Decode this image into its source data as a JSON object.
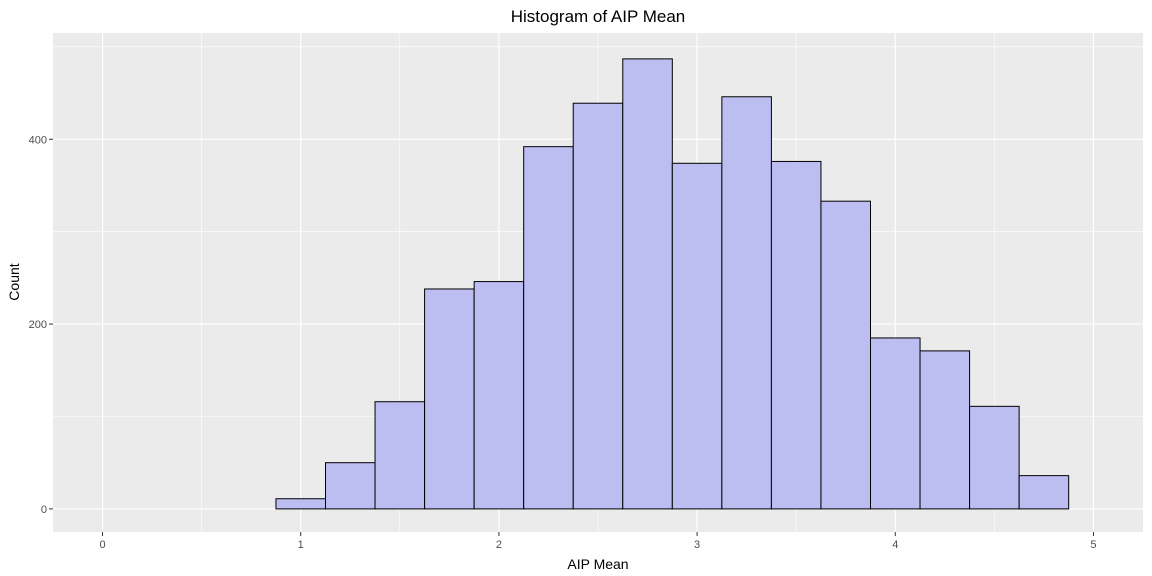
{
  "chart_data": {
    "type": "bar",
    "subtype": "histogram",
    "title": "Histogram of AIP Mean",
    "xlabel": "AIP Mean",
    "ylabel": "Count",
    "xlim": [
      -0.25,
      5.25
    ],
    "ylim": [
      -25,
      515
    ],
    "x_ticks": [
      0,
      1,
      2,
      3,
      4,
      5
    ],
    "x_tick_labels": [
      "0",
      "1",
      "2",
      "3",
      "4",
      "5"
    ],
    "y_ticks": [
      0,
      200,
      400
    ],
    "y_tick_labels": [
      "0",
      "200",
      "400"
    ],
    "x_minor_ticks": [
      0.5,
      1.5,
      2.5,
      3.5,
      4.5
    ],
    "y_minor_ticks": [
      100,
      300,
      500
    ],
    "bin_width": 0.25,
    "bins": [
      {
        "start": 0.125,
        "end": 0.375,
        "count": 0
      },
      {
        "start": 0.375,
        "end": 0.625,
        "count": 0
      },
      {
        "start": 0.625,
        "end": 0.875,
        "count": 0
      },
      {
        "start": 0.875,
        "end": 1.125,
        "count": 11
      },
      {
        "start": 1.125,
        "end": 1.375,
        "count": 50
      },
      {
        "start": 1.375,
        "end": 1.625,
        "count": 116
      },
      {
        "start": 1.625,
        "end": 1.875,
        "count": 238
      },
      {
        "start": 1.875,
        "end": 2.125,
        "count": 246
      },
      {
        "start": 2.125,
        "end": 2.375,
        "count": 392
      },
      {
        "start": 2.375,
        "end": 2.625,
        "count": 439
      },
      {
        "start": 2.625,
        "end": 2.875,
        "count": 487
      },
      {
        "start": 2.875,
        "end": 3.125,
        "count": 374
      },
      {
        "start": 3.125,
        "end": 3.375,
        "count": 446
      },
      {
        "start": 3.375,
        "end": 3.625,
        "count": 376
      },
      {
        "start": 3.625,
        "end": 3.875,
        "count": 333
      },
      {
        "start": 3.875,
        "end": 4.125,
        "count": 185
      },
      {
        "start": 4.125,
        "end": 4.375,
        "count": 171
      },
      {
        "start": 4.375,
        "end": 4.625,
        "count": 111
      },
      {
        "start": 4.625,
        "end": 4.875,
        "count": 36
      }
    ],
    "colors": {
      "bar_fill": "#bcbdf0",
      "bar_stroke": "#000000",
      "panel_background": "#ebebeb",
      "grid": "#ffffff"
    },
    "grid": true,
    "legend": "none"
  }
}
